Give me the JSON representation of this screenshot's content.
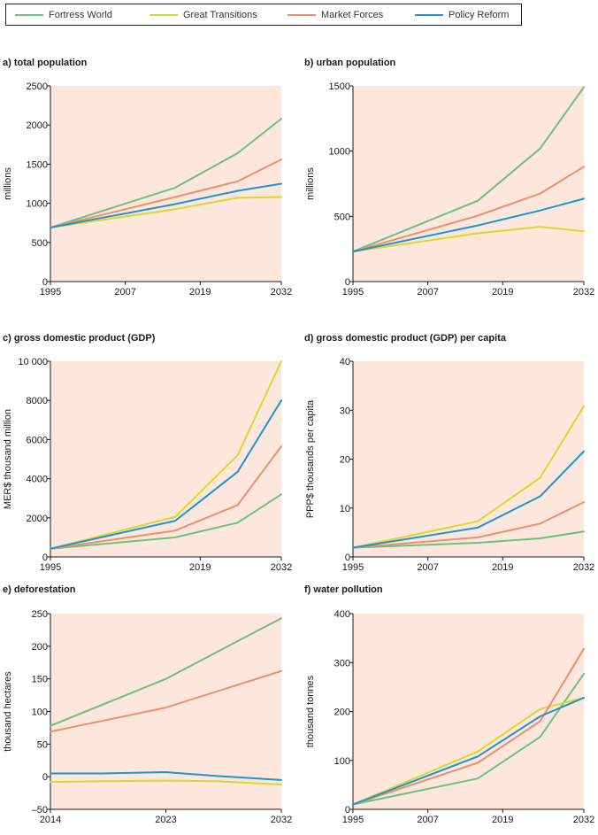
{
  "legend": {
    "items": [
      {
        "name": "Fortress World",
        "color": "#6dbf82"
      },
      {
        "name": "Great Transitions",
        "color": "#d9d92c"
      },
      {
        "name": "Market Forces",
        "color": "#ef8f6a"
      },
      {
        "name": "Policy Reform",
        "color": "#1c95d1"
      }
    ]
  },
  "colors": {
    "plot_background": "#fde6dc",
    "Fortress World": "#6dbf82",
    "Great Transitions": "#d9d92c",
    "Market Forces": "#ef8f6a",
    "Policy Reform": "#1c95d1"
  },
  "chart_data": [
    {
      "type": "line",
      "title": "a) total population",
      "ylabel": "millions",
      "xlabel": "",
      "ylim": [
        0,
        2500
      ],
      "yticks": [
        0,
        500,
        1000,
        1500,
        2000,
        2500
      ],
      "ytick_labels": [
        "0",
        "500",
        "1000",
        "1500",
        "2000",
        "2500"
      ],
      "xticks": [
        1995,
        2007,
        2019,
        2032
      ],
      "xtick_labels": [
        "1995",
        "2007",
        "2019",
        "2032"
      ],
      "grid": false,
      "series": [
        {
          "name": "Fortress World",
          "x": [
            1995,
            2015,
            2025,
            2032
          ],
          "y": [
            690,
            1200,
            1640,
            2080
          ]
        },
        {
          "name": "Great Transitions",
          "x": [
            1995,
            2015,
            2025,
            2032
          ],
          "y": [
            690,
            925,
            1070,
            1080
          ]
        },
        {
          "name": "Market Forces",
          "x": [
            1995,
            2015,
            2025,
            2032
          ],
          "y": [
            690,
            1080,
            1280,
            1560
          ]
        },
        {
          "name": "Policy Reform",
          "x": [
            1995,
            2015,
            2025,
            2032
          ],
          "y": [
            690,
            990,
            1160,
            1250
          ]
        }
      ]
    },
    {
      "type": "line",
      "title": "b) urban population",
      "ylabel": "millions",
      "xlabel": "",
      "ylim": [
        0,
        1500
      ],
      "yticks": [
        0,
        500,
        1000,
        1500
      ],
      "ytick_labels": [
        "0",
        "500",
        "1000",
        "1500"
      ],
      "xticks": [
        1995,
        2007,
        2019,
        2032
      ],
      "xtick_labels": [
        "1995",
        "2007",
        "2019",
        "2032"
      ],
      "grid": false,
      "series": [
        {
          "name": "Fortress World",
          "x": [
            1995,
            2015,
            2025,
            2032
          ],
          "y": [
            230,
            620,
            1020,
            1490
          ]
        },
        {
          "name": "Great Transitions",
          "x": [
            1995,
            2015,
            2025,
            2032
          ],
          "y": [
            230,
            370,
            420,
            385
          ]
        },
        {
          "name": "Market Forces",
          "x": [
            1995,
            2015,
            2025,
            2032
          ],
          "y": [
            230,
            505,
            675,
            880
          ]
        },
        {
          "name": "Policy Reform",
          "x": [
            1995,
            2015,
            2025,
            2032
          ],
          "y": [
            230,
            430,
            545,
            635
          ]
        }
      ]
    },
    {
      "type": "line",
      "title": "c) gross domestic product (GDP)",
      "ylabel": "MER$ thousand million",
      "xlabel": "",
      "ylim": [
        0,
        10000
      ],
      "yticks": [
        0,
        2000,
        4000,
        6000,
        8000,
        10000
      ],
      "ytick_labels": [
        "0",
        "2000",
        "4000",
        "6000",
        "8000",
        "10 000"
      ],
      "xticks": [
        1995,
        2019,
        2032
      ],
      "xtick_labels": [
        "1995",
        "2019",
        "2032"
      ],
      "grid": false,
      "series": [
        {
          "name": "Fortress World",
          "x": [
            1995,
            2015,
            2025,
            2032
          ],
          "y": [
            420,
            1000,
            1750,
            3200
          ]
        },
        {
          "name": "Great Transitions",
          "x": [
            1995,
            2015,
            2025,
            2032
          ],
          "y": [
            420,
            2050,
            5200,
            10000
          ]
        },
        {
          "name": "Market Forces",
          "x": [
            1995,
            2015,
            2025,
            2032
          ],
          "y": [
            420,
            1350,
            2650,
            5650
          ]
        },
        {
          "name": "Policy Reform",
          "x": [
            1995,
            2015,
            2025,
            2032
          ],
          "y": [
            420,
            1850,
            4350,
            8000
          ]
        }
      ]
    },
    {
      "type": "line",
      "title": "d) gross domestic product (GDP) per capita",
      "ylabel": "PPP$ thousands per capita",
      "xlabel": "",
      "ylim": [
        0,
        40
      ],
      "yticks": [
        0,
        10,
        20,
        30,
        40
      ],
      "ytick_labels": [
        "0",
        "10",
        "20",
        "30",
        "40"
      ],
      "xticks": [
        1995,
        2007,
        2019,
        2032
      ],
      "xtick_labels": [
        "1995",
        "2007",
        "2019",
        "2032"
      ],
      "grid": false,
      "series": [
        {
          "name": "Fortress World",
          "x": [
            1995,
            2015,
            2025,
            2032
          ],
          "y": [
            1.9,
            2.9,
            3.8,
            5.2
          ]
        },
        {
          "name": "Great Transitions",
          "x": [
            1995,
            2015,
            2025,
            2032
          ],
          "y": [
            1.9,
            7.3,
            16.2,
            30.8
          ]
        },
        {
          "name": "Market Forces",
          "x": [
            1995,
            2015,
            2025,
            2032
          ],
          "y": [
            1.9,
            4.0,
            6.8,
            11.2
          ]
        },
        {
          "name": "Policy Reform",
          "x": [
            1995,
            2015,
            2025,
            2032
          ],
          "y": [
            1.9,
            6.0,
            12.4,
            21.6
          ]
        }
      ]
    },
    {
      "type": "line",
      "title": "e) deforestation",
      "ylabel": "thousand hectares",
      "xlabel": "",
      "ylim": [
        -50,
        250
      ],
      "yticks": [
        -50,
        0,
        50,
        100,
        150,
        200,
        250
      ],
      "ytick_labels": [
        "–50",
        "0",
        "50",
        "100",
        "150",
        "200",
        "250"
      ],
      "xticks": [
        2014,
        2023,
        2032
      ],
      "xtick_labels": [
        "2014",
        "2023",
        "2032"
      ],
      "grid": false,
      "series": [
        {
          "name": "Fortress World",
          "x": [
            2014,
            2023,
            2032
          ],
          "y": [
            78,
            150,
            243
          ]
        },
        {
          "name": "Great Transitions",
          "x": [
            2014,
            2018,
            2023,
            2027,
            2032
          ],
          "y": [
            -8,
            -7,
            -6,
            -7,
            -12
          ]
        },
        {
          "name": "Market Forces",
          "x": [
            2014,
            2023,
            2032
          ],
          "y": [
            69,
            106,
            162
          ]
        },
        {
          "name": "Policy Reform",
          "x": [
            2014,
            2018,
            2023,
            2027,
            2032
          ],
          "y": [
            5,
            5,
            7,
            1,
            -5
          ]
        }
      ]
    },
    {
      "type": "line",
      "title": "f) water pollution",
      "ylabel": "thousand tonnes",
      "xlabel": "",
      "ylim": [
        0,
        400
      ],
      "yticks": [
        0,
        100,
        200,
        300,
        400
      ],
      "ytick_labels": [
        "0",
        "100",
        "200",
        "300",
        "400"
      ],
      "xticks": [
        1995,
        2007,
        2019,
        2032
      ],
      "xtick_labels": [
        "1995",
        "2007",
        "2019",
        "2032"
      ],
      "grid": false,
      "series": [
        {
          "name": "Fortress World",
          "x": [
            1995,
            2015,
            2025,
            2032
          ],
          "y": [
            10,
            63,
            148,
            277
          ]
        },
        {
          "name": "Great Transitions",
          "x": [
            1995,
            2015,
            2025,
            2032
          ],
          "y": [
            10,
            118,
            205,
            228
          ]
        },
        {
          "name": "Market Forces",
          "x": [
            1995,
            2015,
            2025,
            2032
          ],
          "y": [
            10,
            95,
            180,
            328
          ]
        },
        {
          "name": "Policy Reform",
          "x": [
            1995,
            2015,
            2025,
            2032
          ],
          "y": [
            10,
            108,
            190,
            228
          ]
        }
      ]
    }
  ]
}
